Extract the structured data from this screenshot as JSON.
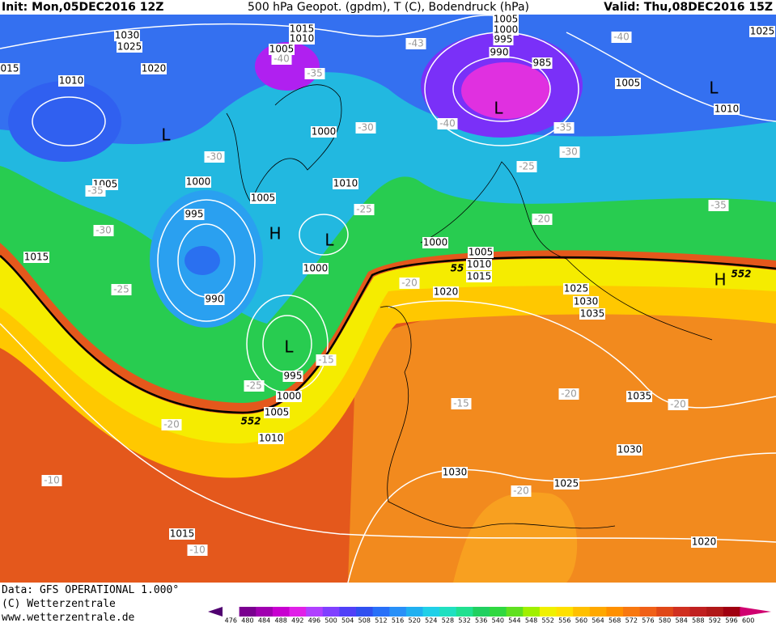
{
  "header": {
    "init": "Init: Mon,05DEC2016 12Z",
    "title": "500 hPa Geopot. (gpdm), T (C), Bodendruck (hPa)",
    "valid": "Valid: Thu,08DEC2016 15Z"
  },
  "footer": {
    "data": "Data: GFS OPERATIONAL 1.000°",
    "copyright": "(C) Wetterzentrale",
    "url": "www.wetterzentrale.de"
  },
  "colorbar": {
    "labels": [
      "476",
      "480",
      "484",
      "488",
      "492",
      "496",
      "500",
      "504",
      "508",
      "512",
      "516",
      "520",
      "524",
      "528",
      "532",
      "536",
      "540",
      "544",
      "548",
      "552",
      "556",
      "560",
      "564",
      "568",
      "572",
      "576",
      "580",
      "584",
      "588",
      "592",
      "596",
      "600"
    ],
    "colors": [
      "#500070",
      "#7a0090",
      "#a000b0",
      "#c800d0",
      "#e020e8",
      "#b040ff",
      "#8040ff",
      "#5040f8",
      "#3050f0",
      "#2870f8",
      "#2890f8",
      "#20b0f0",
      "#20d0e8",
      "#20e0c0",
      "#20e090",
      "#20d060",
      "#30d840",
      "#60e020",
      "#a0f000",
      "#f0f000",
      "#ffe000",
      "#ffc000",
      "#ffa800",
      "#ff9000",
      "#f87810",
      "#f06018",
      "#e04818",
      "#d03020",
      "#c02020",
      "#b01818",
      "#a00010",
      "#d00070"
    ]
  },
  "map": {
    "pressure_labels": [
      "1030",
      "1025",
      "1020",
      "1010",
      "015",
      "1015",
      "1010",
      "1005",
      "1005",
      "1000",
      "995",
      "990",
      "985",
      "1005",
      "1010",
      "1025",
      "1000",
      "1005",
      "1000",
      "995",
      "1005",
      "1010",
      "1000",
      "1000",
      "1005",
      "1010",
      "1015",
      "1020",
      "990",
      "1025",
      "1030",
      "1035",
      "995",
      "1000",
      "1005",
      "1010",
      "1015",
      "1035",
      "1030",
      "1030",
      "1025",
      "1020",
      "1015"
    ],
    "temperature_labels": [
      "-40",
      "-35",
      "-30",
      "-43",
      "-40",
      "-40",
      "-35",
      "-30",
      "-25",
      "-30",
      "-35",
      "-30",
      "-25",
      "-25",
      "-20",
      "-35",
      "-20",
      "-15",
      "-25",
      "-20",
      "-15",
      "-20",
      "-20",
      "-20",
      "-10",
      "-10"
    ],
    "centers": [
      "L",
      "L",
      "L",
      "H",
      "L",
      "L",
      "H"
    ],
    "contour_labels": [
      "552",
      "552",
      "55"
    ]
  }
}
